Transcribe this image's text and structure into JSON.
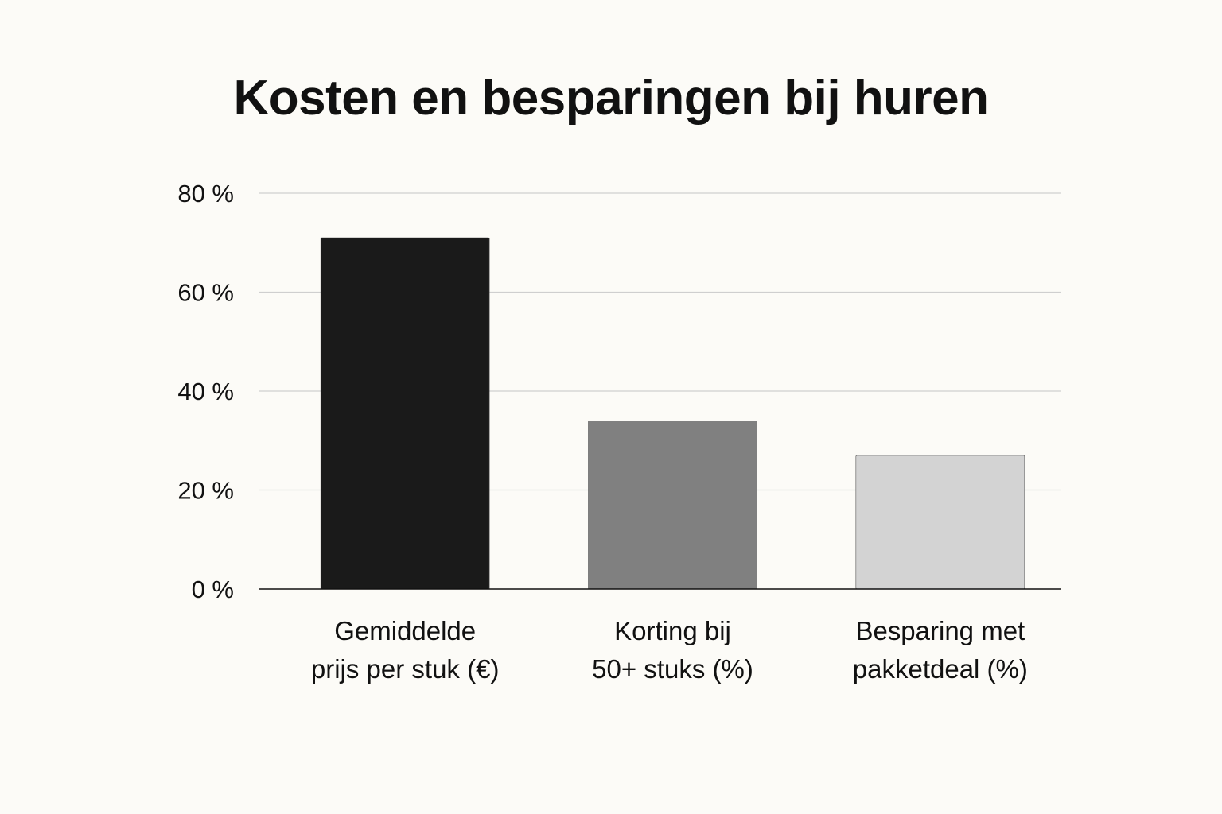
{
  "chart_data": {
    "type": "bar",
    "title": "Kosten en besparingen bij huren",
    "categories": [
      [
        "Gemiddelde",
        "prijs per stuk (€)"
      ],
      [
        "Korting bij",
        "50+ stuks (%)"
      ],
      [
        "Besparing met",
        "pakketdeal (%)"
      ]
    ],
    "values": [
      71,
      34,
      27
    ],
    "colors": [
      "#1a1a1a",
      "#808080",
      "#d3d3d3"
    ],
    "ylim": [
      0,
      80
    ],
    "yticks": [
      0,
      20,
      40,
      60,
      80
    ],
    "ytick_labels": [
      "0 %",
      "20 %",
      "40 %",
      "60 %",
      "80 %"
    ],
    "xlabel": "",
    "ylabel": "",
    "grid": true
  }
}
